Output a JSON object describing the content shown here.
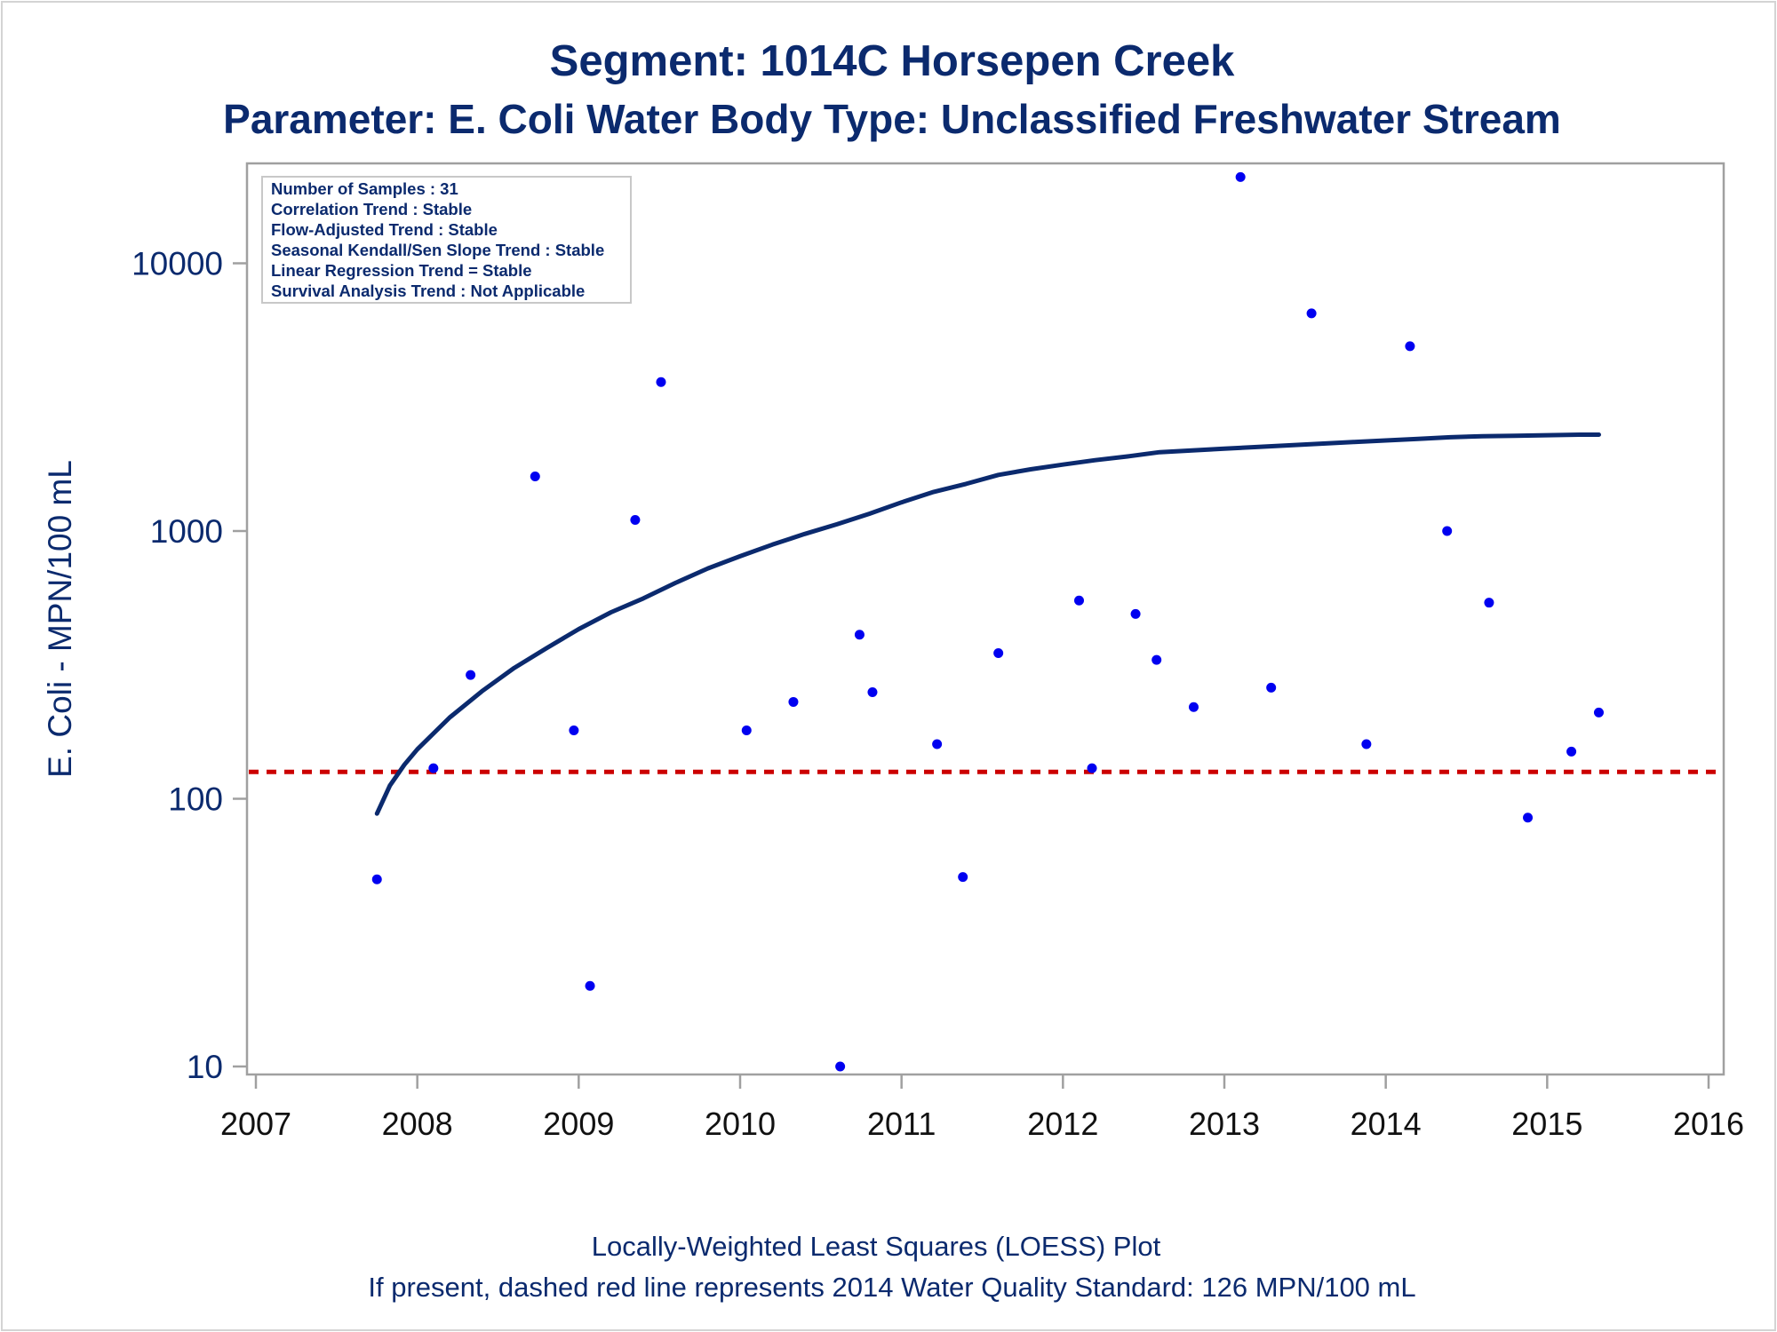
{
  "chart_data": {
    "type": "scatter",
    "title": "Segment: 1014C  Horsepen Creek",
    "subtitle": "Parameter: E. Coli   Water Body Type: Unclassified Freshwater Stream",
    "ylabel": "E. Coli - MPN/100 mL",
    "xlim": [
      2007,
      2016
    ],
    "x_ticks": [
      "2007",
      "2008",
      "2009",
      "2010",
      "2011",
      "2012",
      "2013",
      "2014",
      "2015",
      "2016"
    ],
    "y_scale": "log",
    "ylim": [
      9,
      22000
    ],
    "y_ticks": [
      "10",
      "100",
      "1000",
      "10000"
    ],
    "grid": false,
    "stats_box": [
      "Number of Samples : 31",
      "Correlation Trend : Stable",
      "Flow-Adjusted Trend : Stable",
      "Seasonal Kendall/Sen Slope Trend : Stable",
      "Linear Regression Trend = Stable",
      "Survival Analysis Trend : Not Applicable"
    ],
    "standard_value": 126,
    "series": [
      {
        "values": [
          [
            2007.75,
            50
          ],
          [
            2008.1,
            130
          ],
          [
            2008.33,
            290
          ],
          [
            2008.73,
            1600
          ],
          [
            2008.97,
            180
          ],
          [
            2009.07,
            20
          ],
          [
            2009.35,
            1100
          ],
          [
            2009.51,
            3600
          ],
          [
            2010.04,
            180
          ],
          [
            2010.33,
            230
          ],
          [
            2010.62,
            10
          ],
          [
            2010.74,
            410
          ],
          [
            2010.82,
            250
          ],
          [
            2011.22,
            160
          ],
          [
            2011.38,
            51
          ],
          [
            2011.6,
            350
          ],
          [
            2012.1,
            550
          ],
          [
            2012.18,
            130
          ],
          [
            2012.45,
            490
          ],
          [
            2012.58,
            330
          ],
          [
            2012.81,
            220
          ],
          [
            2013.1,
            21000
          ],
          [
            2013.29,
            260
          ],
          [
            2013.54,
            6500
          ],
          [
            2013.88,
            160
          ],
          [
            2014.15,
            4900
          ],
          [
            2014.38,
            1000
          ],
          [
            2014.64,
            540
          ],
          [
            2014.88,
            85
          ],
          [
            2015.15,
            150
          ],
          [
            2015.32,
            210
          ]
        ]
      },
      {
        "type": "line",
        "values": [
          [
            2007.75,
            88
          ],
          [
            2007.83,
            112
          ],
          [
            2007.92,
            134
          ],
          [
            2008.0,
            153
          ],
          [
            2008.2,
            201
          ],
          [
            2008.4,
            252
          ],
          [
            2008.6,
            308
          ],
          [
            2008.8,
            365
          ],
          [
            2009.0,
            430
          ],
          [
            2009.2,
            497
          ],
          [
            2009.4,
            560
          ],
          [
            2009.6,
            640
          ],
          [
            2009.8,
            725
          ],
          [
            2010.0,
            805
          ],
          [
            2010.2,
            890
          ],
          [
            2010.4,
            975
          ],
          [
            2010.6,
            1060
          ],
          [
            2010.8,
            1160
          ],
          [
            2011.0,
            1280
          ],
          [
            2011.2,
            1400
          ],
          [
            2011.4,
            1500
          ],
          [
            2011.6,
            1620
          ],
          [
            2011.8,
            1700
          ],
          [
            2012.0,
            1770
          ],
          [
            2012.2,
            1840
          ],
          [
            2012.4,
            1900
          ],
          [
            2012.6,
            1970
          ],
          [
            2012.8,
            2000
          ],
          [
            2013.0,
            2030
          ],
          [
            2013.2,
            2060
          ],
          [
            2013.4,
            2090
          ],
          [
            2013.6,
            2120
          ],
          [
            2013.8,
            2150
          ],
          [
            2014.0,
            2180
          ],
          [
            2014.2,
            2210
          ],
          [
            2014.4,
            2240
          ],
          [
            2014.6,
            2260
          ],
          [
            2014.8,
            2270
          ],
          [
            2015.0,
            2280
          ],
          [
            2015.2,
            2290
          ],
          [
            2015.32,
            2290
          ]
        ]
      }
    ],
    "footnotes": [
      "Locally-Weighted Least Squares (LOESS) Plot",
      "If present, dashed red line represents 2014 Water Quality Standard: 126 MPN/100 mL"
    ],
    "colors": {
      "text": "#0b2a6e",
      "points": "#0000f0",
      "loess": "#0b2a6e",
      "standard": "#cc0000",
      "axis": "#a0a0a0",
      "xtick_text": "#111111"
    }
  }
}
